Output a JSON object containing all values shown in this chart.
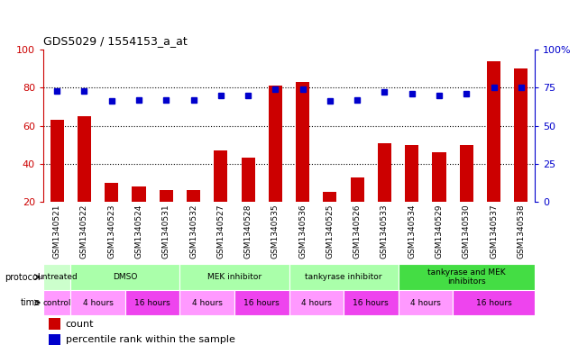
{
  "title": "GDS5029 / 1554153_a_at",
  "samples": [
    "GSM1340521",
    "GSM1340522",
    "GSM1340523",
    "GSM1340524",
    "GSM1340531",
    "GSM1340532",
    "GSM1340527",
    "GSM1340528",
    "GSM1340535",
    "GSM1340536",
    "GSM1340525",
    "GSM1340526",
    "GSM1340533",
    "GSM1340534",
    "GSM1340529",
    "GSM1340530",
    "GSM1340537",
    "GSM1340538"
  ],
  "counts": [
    63,
    65,
    30,
    28,
    26,
    26,
    47,
    43,
    81,
    83,
    25,
    33,
    51,
    50,
    46,
    50,
    94,
    90
  ],
  "percentiles": [
    73,
    73,
    66,
    67,
    67,
    67,
    70,
    70,
    74,
    74,
    66,
    67,
    72,
    71,
    70,
    71,
    75,
    75
  ],
  "bar_color": "#cc0000",
  "dot_color": "#0000cc",
  "protocol_groups": [
    {
      "label": "untreated",
      "start": 0,
      "end": 1,
      "color": "#ccffcc"
    },
    {
      "label": "DMSO",
      "start": 1,
      "end": 5,
      "color": "#aaffaa"
    },
    {
      "label": "MEK inhibitor",
      "start": 5,
      "end": 9,
      "color": "#aaffaa"
    },
    {
      "label": "tankyrase inhibitor",
      "start": 9,
      "end": 13,
      "color": "#aaffaa"
    },
    {
      "label": "tankyrase and MEK\ninhibitors",
      "start": 13,
      "end": 18,
      "color": "#44dd44"
    }
  ],
  "time_groups": [
    {
      "label": "control",
      "start": 0,
      "end": 1,
      "color": "#ff99ff"
    },
    {
      "label": "4 hours",
      "start": 1,
      "end": 3,
      "color": "#ff99ff"
    },
    {
      "label": "16 hours",
      "start": 3,
      "end": 5,
      "color": "#ee44ee"
    },
    {
      "label": "4 hours",
      "start": 5,
      "end": 7,
      "color": "#ff99ff"
    },
    {
      "label": "16 hours",
      "start": 7,
      "end": 9,
      "color": "#ee44ee"
    },
    {
      "label": "4 hours",
      "start": 9,
      "end": 11,
      "color": "#ff99ff"
    },
    {
      "label": "16 hours",
      "start": 11,
      "end": 13,
      "color": "#ee44ee"
    },
    {
      "label": "4 hours",
      "start": 13,
      "end": 15,
      "color": "#ff99ff"
    },
    {
      "label": "16 hours",
      "start": 15,
      "end": 18,
      "color": "#ee44ee"
    }
  ],
  "ylim_left": [
    20,
    100
  ],
  "ylim_right": [
    0,
    100
  ],
  "left_yticks": [
    20,
    40,
    60,
    80,
    100
  ],
  "right_ytick_vals": [
    0,
    25,
    50,
    75,
    100
  ],
  "right_ytick_labels": [
    "0",
    "25",
    "50",
    "75",
    "100%"
  ]
}
